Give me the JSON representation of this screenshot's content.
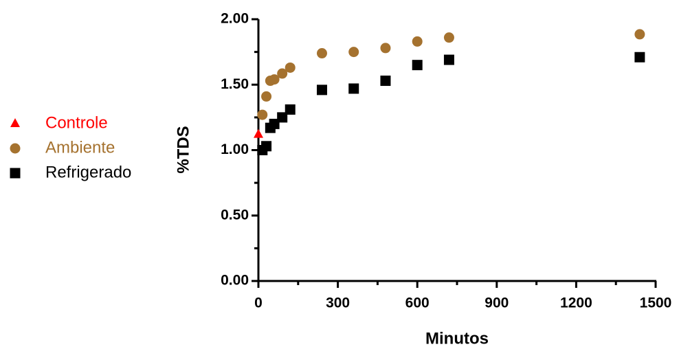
{
  "chart_data": {
    "type": "scatter",
    "xlabel": "Minutos",
    "ylabel": "%TDS",
    "xlim": [
      0,
      1500
    ],
    "xticks": [
      0,
      300,
      600,
      900,
      1200,
      1500
    ],
    "xminorticks": [
      150,
      450,
      750,
      1050,
      1350
    ],
    "ylim": [
      0,
      2
    ],
    "yticks": [
      {
        "value": 0,
        "label": "0.00"
      },
      {
        "value": 0.5,
        "label": "0.50"
      },
      {
        "value": 1,
        "label": "1.00"
      },
      {
        "value": 1.5,
        "label": "1.50"
      },
      {
        "value": 2,
        "label": "2.00"
      }
    ],
    "yminorticks": [
      0.25,
      0.75,
      1.25,
      1.75
    ],
    "legend": "left",
    "series": [
      {
        "name": "Controle",
        "color": "#ff0000",
        "marker": "triangle",
        "x": [
          0
        ],
        "values": [
          1.12
        ]
      },
      {
        "name": "Ambiente",
        "color": "#a5722f",
        "marker": "circle",
        "x": [
          15,
          30,
          45,
          60,
          90,
          120,
          240,
          360,
          480,
          600,
          720,
          1440
        ],
        "values": [
          1.27,
          1.41,
          1.53,
          1.54,
          1.585,
          1.63,
          1.74,
          1.75,
          1.78,
          1.83,
          1.86,
          1.885
        ]
      },
      {
        "name": "Refrigerado",
        "color": "#000000",
        "marker": "square",
        "x": [
          15,
          30,
          45,
          60,
          90,
          120,
          240,
          360,
          480,
          600,
          720,
          1440
        ],
        "values": [
          1.0,
          1.03,
          1.17,
          1.2,
          1.25,
          1.31,
          1.46,
          1.47,
          1.53,
          1.65,
          1.69,
          1.71
        ]
      }
    ]
  }
}
